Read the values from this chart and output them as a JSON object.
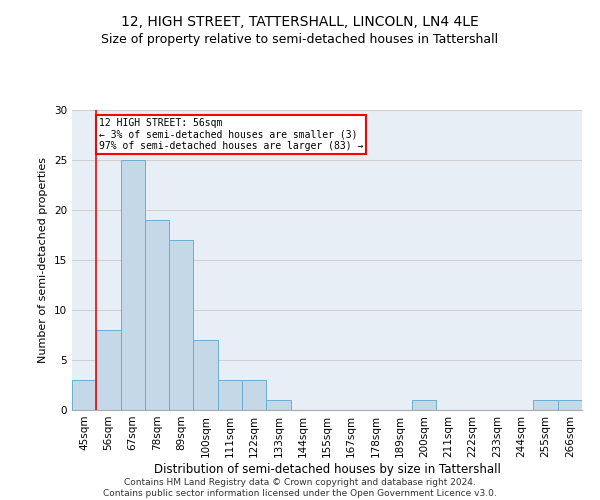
{
  "title": "12, HIGH STREET, TATTERSHALL, LINCOLN, LN4 4LE",
  "subtitle": "Size of property relative to semi-detached houses in Tattershall",
  "xlabel": "Distribution of semi-detached houses by size in Tattershall",
  "ylabel": "Number of semi-detached properties",
  "categories": [
    "45sqm",
    "56sqm",
    "67sqm",
    "78sqm",
    "89sqm",
    "100sqm",
    "111sqm",
    "122sqm",
    "133sqm",
    "144sqm",
    "155sqm",
    "167sqm",
    "178sqm",
    "189sqm",
    "200sqm",
    "211sqm",
    "222sqm",
    "233sqm",
    "244sqm",
    "255sqm",
    "266sqm"
  ],
  "values": [
    3,
    8,
    25,
    19,
    17,
    7,
    3,
    3,
    1,
    0,
    0,
    0,
    0,
    0,
    1,
    0,
    0,
    0,
    0,
    1,
    1
  ],
  "bar_color": "#c5d8e8",
  "bar_edge_color": "#6aaed6",
  "annotation_text": "12 HIGH STREET: 56sqm\n← 3% of semi-detached houses are smaller (3)\n97% of semi-detached houses are larger (83) →",
  "annotation_box_color": "white",
  "annotation_box_edge_color": "red",
  "vline_color": "red",
  "vline_x_index": 1,
  "ylim": [
    0,
    30
  ],
  "yticks": [
    0,
    5,
    10,
    15,
    20,
    25,
    30
  ],
  "grid_color": "#d0d0d0",
  "bg_color": "#e8eef5",
  "footer": "Contains HM Land Registry data © Crown copyright and database right 2024.\nContains public sector information licensed under the Open Government Licence v3.0.",
  "title_fontsize": 10,
  "subtitle_fontsize": 9,
  "xlabel_fontsize": 8.5,
  "ylabel_fontsize": 8,
  "tick_fontsize": 7.5,
  "footer_fontsize": 6.5
}
